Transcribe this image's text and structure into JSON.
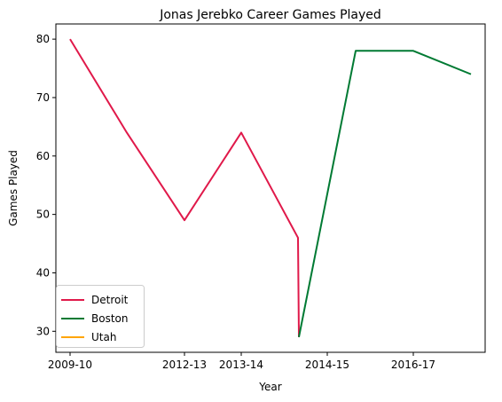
{
  "chart_data": {
    "type": "line",
    "title": "Jonas Jerebko Career Games Played",
    "xlabel": "Year",
    "ylabel": "Games Played",
    "ylim": [
      26.4,
      82.6
    ],
    "yticks": [
      30,
      40,
      50,
      60,
      70,
      80
    ],
    "categories": [
      "2009-10",
      "2011-12",
      "2012-13",
      "2013-14",
      "2014-15a",
      "2014-15b",
      "2014-15",
      "2015-16",
      "2016-17",
      "2017-18"
    ],
    "xtick_labels": [
      {
        "category": "2009-10",
        "label": "2009-10"
      },
      {
        "category": "2012-13",
        "label": "2012-13"
      },
      {
        "category": "2013-14",
        "label": "2013-14"
      },
      {
        "category": "2014-15",
        "label": "2014-15"
      },
      {
        "category": "2016-17",
        "label": "2016-17"
      }
    ],
    "series": [
      {
        "name": "Detroit",
        "color": "#E0194A",
        "points": [
          [
            "2009-10",
            80
          ],
          [
            "2011-12",
            64
          ],
          [
            "2012-13",
            49
          ],
          [
            "2013-14",
            64
          ],
          [
            "2014-15a",
            46
          ],
          [
            "2014-15b",
            29
          ]
        ]
      },
      {
        "name": "Boston",
        "color": "#007A33",
        "points": [
          [
            "2014-15b",
            29
          ],
          [
            "2015-16",
            78
          ],
          [
            "2016-17",
            78
          ],
          [
            "2017-18",
            74
          ]
        ]
      },
      {
        "name": "Utah",
        "color": "#FFA500",
        "points": []
      }
    ],
    "legend_position": "lower-left",
    "grid": false
  }
}
